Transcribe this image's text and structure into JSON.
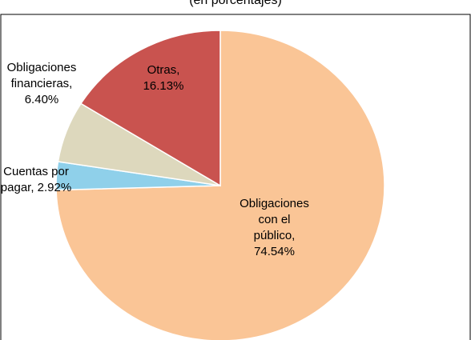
{
  "chart_data": {
    "type": "pie",
    "subtitle": "(en porcentajes)",
    "values": [
      74.54,
      2.92,
      6.4,
      16.13
    ],
    "value_labels": [
      "Obligaciones con el público, 74.54%",
      "Cuentas por pagar, 2.92%",
      "Obligaciones financieras, 6.40%",
      "Otras, 16.13%"
    ],
    "colors": [
      "#fac596",
      "#8fd0ea",
      "#ddd8bd",
      "#c9534f"
    ]
  }
}
